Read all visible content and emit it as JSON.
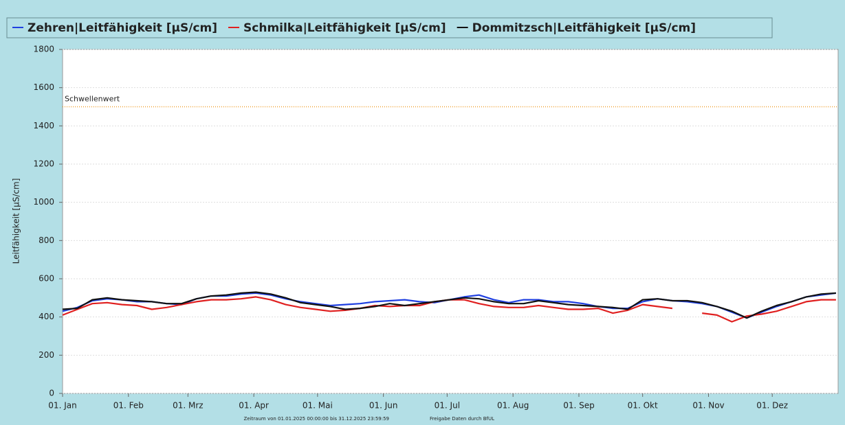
{
  "chart_data": {
    "type": "line",
    "y_label": "Leitfähigkeit [µS/cm]",
    "footer": [
      "Zeitraum von 01.01.2025 00:00:00 bis 31.12.2025 23:59:59",
      "Freigabe Daten durch BfUL"
    ],
    "xlim": [
      0,
      365
    ],
    "xticks": [
      {
        "value": 0,
        "label": "01. Jan"
      },
      {
        "value": 31,
        "label": "01. Feb"
      },
      {
        "value": 59,
        "label": "01. Mrz"
      },
      {
        "value": 90,
        "label": "01. Apr"
      },
      {
        "value": 120,
        "label": "01. Mai"
      },
      {
        "value": 151,
        "label": "01. Jun"
      },
      {
        "value": 181,
        "label": "01. Jul"
      },
      {
        "value": 212,
        "label": "01. Aug"
      },
      {
        "value": 243,
        "label": "01. Sep"
      },
      {
        "value": 273,
        "label": "01. Okt"
      },
      {
        "value": 304,
        "label": "01. Nov"
      },
      {
        "value": 334,
        "label": "01. Dez"
      }
    ],
    "ylim": [
      0,
      1800
    ],
    "yticks": [
      0,
      200,
      400,
      600,
      800,
      1000,
      1200,
      1400,
      1600,
      1800
    ],
    "grid": true,
    "threshold": {
      "value": 1500,
      "label": "Schwellenwert",
      "color": "#f0a030"
    },
    "x": [
      0,
      7,
      14,
      21,
      28,
      35,
      42,
      49,
      56,
      63,
      70,
      77,
      84,
      91,
      98,
      105,
      112,
      119,
      126,
      133,
      140,
      147,
      154,
      161,
      168,
      175,
      182,
      189,
      196,
      203,
      210,
      217,
      224,
      231,
      238,
      245,
      252,
      259,
      266,
      273,
      280,
      287,
      294,
      301,
      308,
      315,
      322,
      329,
      336,
      343,
      350,
      357,
      364
    ],
    "series": [
      {
        "name": "Zehren|Leitfähigkeit [µS/cm]",
        "color": "#1f3fe0",
        "values": [
          430,
          450,
          485,
          495,
          490,
          480,
          480,
          470,
          465,
          495,
          510,
          510,
          520,
          525,
          515,
          495,
          480,
          470,
          460,
          465,
          470,
          480,
          485,
          490,
          480,
          475,
          490,
          505,
          515,
          490,
          475,
          490,
          490,
          480,
          480,
          470,
          455,
          445,
          445,
          480,
          495,
          485,
          480,
          470,
          455,
          425,
          395,
          425,
          455,
          480,
          505,
          515,
          525
        ]
      },
      {
        "name": "Schmilka|Leitfähigkeit [µS/cm]",
        "color": "#e02020",
        "values": [
          410,
          440,
          470,
          475,
          465,
          460,
          440,
          450,
          465,
          480,
          490,
          490,
          495,
          505,
          490,
          465,
          450,
          440,
          430,
          435,
          445,
          460,
          455,
          460,
          460,
          480,
          490,
          490,
          470,
          455,
          450,
          450,
          460,
          450,
          440,
          440,
          445,
          420,
          435,
          465,
          455,
          445,
          null,
          420,
          410,
          375,
          405,
          415,
          430,
          455,
          480,
          490,
          490
        ]
      },
      {
        "name": "Dommitzsch|Leitfähigkeit [µS/cm]",
        "color": "#111111",
        "values": [
          440,
          445,
          490,
          500,
          490,
          485,
          480,
          470,
          470,
          495,
          510,
          515,
          525,
          530,
          520,
          500,
          475,
          465,
          455,
          440,
          445,
          455,
          470,
          460,
          470,
          480,
          490,
          500,
          495,
          480,
          470,
          470,
          485,
          475,
          465,
          460,
          455,
          450,
          440,
          490,
          495,
          485,
          485,
          475,
          455,
          430,
          395,
          430,
          460,
          480,
          505,
          520,
          525
        ]
      }
    ]
  }
}
